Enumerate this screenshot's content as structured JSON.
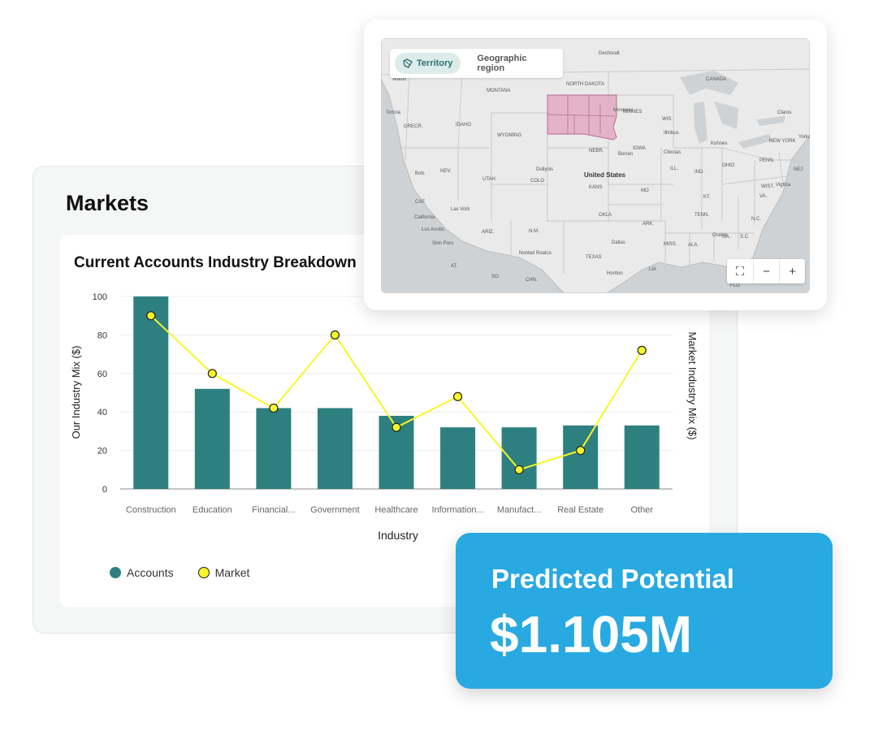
{
  "markets": {
    "title": "Markets",
    "chart": {
      "title": "Current Accounts Industry Breakdown",
      "legend": [
        {
          "label": "Accounts",
          "color": "#2e8080"
        },
        {
          "label": "Market",
          "color": "#f6f62a"
        }
      ]
    }
  },
  "chart_data": {
    "type": "bar",
    "title": "Current Accounts Industry Breakdown",
    "xlabel": "Industry",
    "ylabel": "Our Industry Mix ($)",
    "y2label": "Market Industry Mix ($)",
    "ylim": [
      0,
      100
    ],
    "yticks": [
      0,
      20,
      40,
      60,
      80,
      100
    ],
    "grid": true,
    "legend_position": "bottom-left",
    "categories": [
      "Construction",
      "Education",
      "Financial...",
      "Government",
      "Healthcare",
      "Information...",
      "Manufact...",
      "Real Estate",
      "Other"
    ],
    "series": [
      {
        "name": "Accounts",
        "type": "bar",
        "color": "#2e8080",
        "values": [
          100,
          52,
          42,
          42,
          38,
          32,
          32,
          33,
          33
        ]
      },
      {
        "name": "Market",
        "type": "line",
        "color": "#f6f62a",
        "values": [
          90,
          60,
          42,
          80,
          32,
          48,
          10,
          20,
          72
        ]
      }
    ]
  },
  "map": {
    "tabs": [
      {
        "label": "Territory",
        "active": true,
        "icon": "territory-icon"
      },
      {
        "label": "Geographic region",
        "active": false
      }
    ],
    "controls": [
      {
        "name": "fit-bounds-icon",
        "glyph": "⛶"
      },
      {
        "name": "zoom-out-icon",
        "glyph": "−"
      },
      {
        "name": "zoom-in-icon",
        "glyph": "+"
      }
    ],
    "highlight_color": "#e3a9c4",
    "labels": [
      {
        "text": "CANADA",
        "bold": false
      },
      {
        "text": "Deshoralt",
        "bold": false
      },
      {
        "text": "Waton",
        "bold": false
      },
      {
        "text": "MONTANA",
        "bold": false
      },
      {
        "text": "NORTH DAKOTA",
        "bold": false
      },
      {
        "text": "MINNES",
        "bold": false
      },
      {
        "text": "Torcoa",
        "bold": false
      },
      {
        "text": "GRECR.",
        "bold": false
      },
      {
        "text": "IDAHO",
        "bold": false
      },
      {
        "text": "WYOMING",
        "bold": false
      },
      {
        "text": "Minnerac",
        "bold": false
      },
      {
        "text": "WIS.",
        "bold": false
      },
      {
        "text": "Claros",
        "bold": false
      },
      {
        "text": "Illinbus",
        "bold": false
      },
      {
        "text": "NEBR.",
        "bold": false
      },
      {
        "text": "Borran",
        "bold": false
      },
      {
        "text": "IOWA",
        "bold": false
      },
      {
        "text": "Clloctas",
        "bold": false
      },
      {
        "text": "Kohnes",
        "bold": false
      },
      {
        "text": "NEW YORK",
        "bold": false
      },
      {
        "text": "Yorka",
        "bold": false
      },
      {
        "text": "Bols",
        "bold": false
      },
      {
        "text": "NEV.",
        "bold": false
      },
      {
        "text": "UTAH",
        "bold": false
      },
      {
        "text": "Dollyols",
        "bold": false
      },
      {
        "text": "COLO",
        "bold": false
      },
      {
        "text": "United States",
        "bold": true
      },
      {
        "text": "KANS",
        "bold": false
      },
      {
        "text": "ILL.",
        "bold": false
      },
      {
        "text": "IND.",
        "bold": false
      },
      {
        "text": "OHIO",
        "bold": false
      },
      {
        "text": "PENN.",
        "bold": false
      },
      {
        "text": "NEJ",
        "bold": false
      },
      {
        "text": "WIST.",
        "bold": false
      },
      {
        "text": "Vigtlca",
        "bold": false
      },
      {
        "text": "MO",
        "bold": false
      },
      {
        "text": "KT.",
        "bold": false
      },
      {
        "text": "VA.",
        "bold": false
      },
      {
        "text": "CAF.",
        "bold": false
      },
      {
        "text": "Las Vork",
        "bold": false
      },
      {
        "text": "California",
        "bold": false
      },
      {
        "text": "OKLA",
        "bold": false
      },
      {
        "text": "TENN.",
        "bold": false
      },
      {
        "text": "N.C.",
        "bold": false
      },
      {
        "text": "Los Anobs",
        "bold": false
      },
      {
        "text": "ARIZ.",
        "bold": false
      },
      {
        "text": "N.M.",
        "bold": false
      },
      {
        "text": "ARK.",
        "bold": false
      },
      {
        "text": "Ocelos",
        "bold": false
      },
      {
        "text": "S.C.",
        "bold": false
      },
      {
        "text": "Sinn Porn",
        "bold": false
      },
      {
        "text": "Dallas",
        "bold": false
      },
      {
        "text": "MISS.",
        "bold": false
      },
      {
        "text": "ALA.",
        "bold": false
      },
      {
        "text": "GA.",
        "bold": false
      },
      {
        "text": "Nonted Roalco",
        "bold": false
      },
      {
        "text": "TEXAS",
        "bold": false
      },
      {
        "text": "AT.",
        "bold": false
      },
      {
        "text": "SO.",
        "bold": false
      },
      {
        "text": "CHN.",
        "bold": false
      },
      {
        "text": "Hortton",
        "bold": false
      },
      {
        "text": "LIA",
        "bold": false
      },
      {
        "text": "FLO.",
        "bold": false
      }
    ]
  },
  "potential": {
    "label": "Predicted Potential",
    "value": "$1.105M"
  }
}
